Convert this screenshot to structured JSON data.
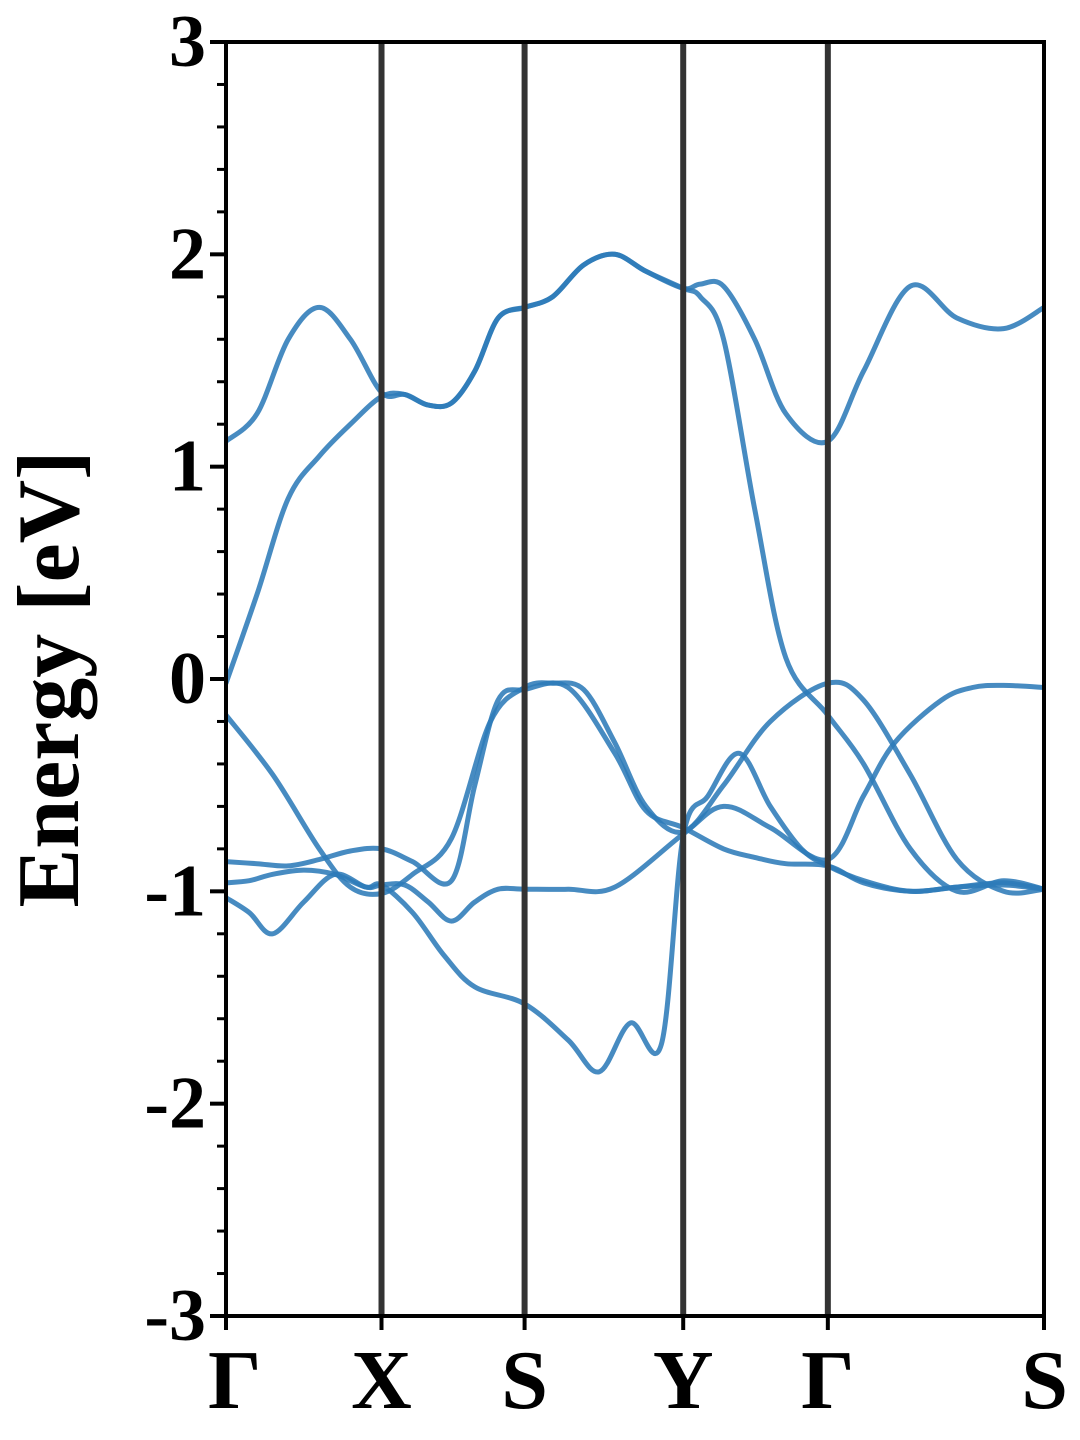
{
  "chart_data": {
    "type": "line",
    "title": "",
    "xlabel": "",
    "ylabel": "Energy [eV]",
    "ylim": [
      -3,
      3
    ],
    "yticks": [
      -3,
      -2,
      -1,
      0,
      1,
      2,
      3
    ],
    "ytick_labels": [
      "-3",
      "-2",
      "-1",
      "0",
      "1",
      "2",
      "3"
    ],
    "minor_ytick_step": 0.2,
    "grid": false,
    "legend": "none",
    "kpath": {
      "labels": [
        "Γ",
        "X",
        "S",
        "Y",
        "Γ",
        "S"
      ],
      "positions": [
        0,
        1,
        1.92,
        2.94,
        3.87,
        5.26
      ],
      "separator_color": "#333333"
    },
    "line_color": "#2e7bb8",
    "series": [
      {
        "x": [
          0,
          0.2,
          0.4,
          0.6,
          0.8,
          1.0,
          1.15,
          1.3,
          1.45,
          1.6,
          1.75,
          1.92
        ],
        "values": [
          1.12,
          1.25,
          1.6,
          1.75,
          1.6,
          1.35,
          1.34,
          1.29,
          1.3,
          1.45,
          1.7,
          1.75
        ]
      },
      {
        "x": [
          1.92,
          2.1,
          2.3,
          2.5,
          2.7,
          2.94,
          3.05,
          3.2,
          3.4,
          3.6,
          3.87,
          4.1,
          4.4,
          4.7,
          5.0,
          5.26
        ],
        "values": [
          1.75,
          1.8,
          1.95,
          2.0,
          1.92,
          1.84,
          1.86,
          1.85,
          1.6,
          1.25,
          1.12,
          1.45,
          1.85,
          1.7,
          1.65,
          1.75
        ]
      },
      {
        "x": [
          0,
          0.2,
          0.4,
          0.6,
          0.8,
          1.0,
          1.15,
          1.3,
          1.45,
          1.6,
          1.75,
          1.92,
          2.1,
          2.3,
          2.5,
          2.7,
          2.94,
          3.05,
          3.2,
          3.4,
          3.6,
          3.87,
          4.1,
          4.4,
          4.7,
          5.0,
          5.26
        ],
        "values": [
          -0.02,
          0.4,
          0.85,
          1.05,
          1.2,
          1.33,
          1.34,
          1.29,
          1.3,
          1.45,
          1.7,
          1.75,
          1.8,
          1.95,
          2.0,
          1.92,
          1.84,
          1.8,
          1.6,
          0.8,
          0.1,
          -0.17,
          -0.4,
          -0.8,
          -1.0,
          -0.95,
          -0.99
        ]
      },
      {
        "x": [
          0,
          0.3,
          0.6,
          0.8,
          1.0,
          1.2,
          1.45,
          1.7,
          1.92,
          2.1,
          2.3,
          2.5,
          2.7,
          2.94,
          3.2,
          3.5,
          3.87,
          4.1,
          4.4,
          4.7,
          5.0,
          5.26
        ],
        "values": [
          -0.17,
          -0.45,
          -0.8,
          -0.98,
          -1.01,
          -0.92,
          -0.75,
          -0.2,
          -0.04,
          -0.02,
          -0.05,
          -0.3,
          -0.6,
          -0.72,
          -0.5,
          -0.2,
          -0.02,
          -0.1,
          -0.45,
          -0.85,
          -1.0,
          -0.99
        ]
      },
      {
        "x": [
          0,
          0.2,
          0.4,
          0.6,
          0.8,
          1.0,
          1.2,
          1.45,
          1.6,
          1.75,
          1.92,
          2.2,
          2.5,
          2.7,
          2.94,
          3.2,
          3.4,
          3.6,
          3.87,
          4.1,
          4.4,
          4.7,
          5.0,
          5.26
        ],
        "values": [
          -0.86,
          -0.87,
          -0.88,
          -0.85,
          -0.81,
          -0.8,
          -0.86,
          -0.95,
          -0.5,
          -0.1,
          -0.05,
          -0.04,
          -0.35,
          -0.62,
          -0.7,
          -0.8,
          -0.84,
          -0.87,
          -0.88,
          -0.96,
          -1.0,
          -0.98,
          -0.96,
          -0.99
        ]
      },
      {
        "x": [
          0,
          0.15,
          0.3,
          0.5,
          0.7,
          0.9,
          1.0,
          1.15,
          1.3,
          1.45,
          1.6,
          1.75,
          1.92,
          2.2,
          2.5,
          2.94,
          3.2,
          3.5,
          3.87,
          4.1,
          4.3,
          4.6,
          4.8,
          5.0,
          5.26
        ],
        "values": [
          -0.96,
          -0.95,
          -0.92,
          -0.9,
          -0.92,
          -0.98,
          -0.97,
          -0.97,
          -1.05,
          -1.14,
          -1.05,
          -0.99,
          -0.99,
          -0.99,
          -0.98,
          -0.73,
          -0.6,
          -0.7,
          -0.85,
          -0.55,
          -0.3,
          -0.1,
          -0.04,
          -0.03,
          -0.04
        ]
      },
      {
        "x": [
          0,
          0.15,
          0.3,
          0.5,
          0.7,
          0.9,
          1.0,
          1.2,
          1.4,
          1.6,
          1.92,
          2.2,
          2.4,
          2.6,
          2.8,
          2.94,
          3.1,
          3.3,
          3.5,
          3.7,
          3.87,
          4.1,
          4.4,
          4.7,
          5.0,
          5.26
        ],
        "values": [
          -1.03,
          -1.1,
          -1.2,
          -1.05,
          -0.92,
          -0.98,
          -0.97,
          -1.1,
          -1.3,
          -1.45,
          -1.53,
          -1.7,
          -1.85,
          -1.62,
          -1.72,
          -0.74,
          -0.55,
          -0.35,
          -0.6,
          -0.8,
          -0.88,
          -0.95,
          -1.0,
          -0.98,
          -0.97,
          -0.99
        ]
      }
    ]
  }
}
